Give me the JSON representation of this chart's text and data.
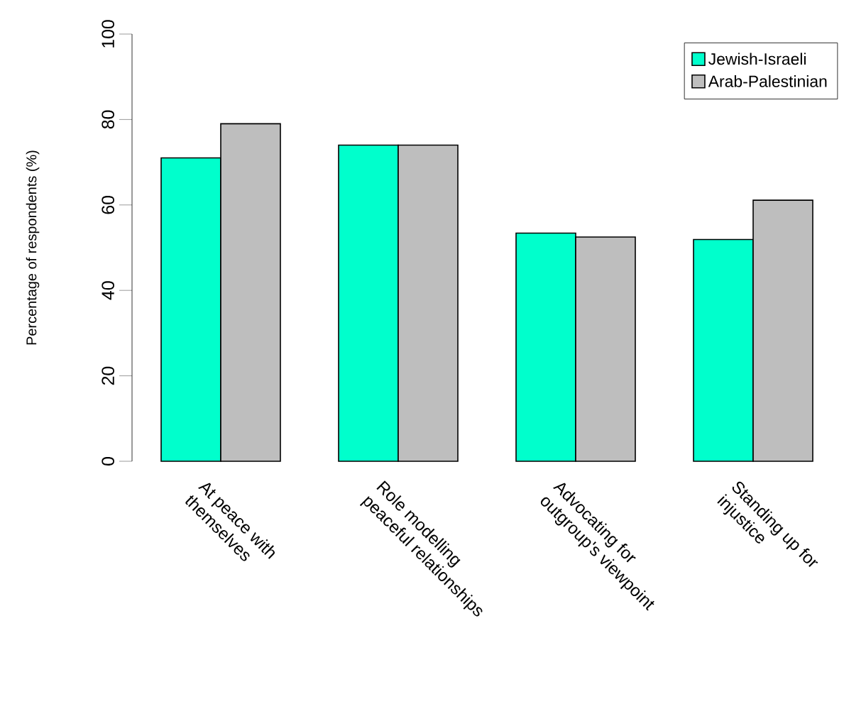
{
  "chart_data": {
    "type": "bar",
    "ylabel": "Percentage of respondents (%)",
    "categories": [
      "At peace with themselves",
      "Role modelling peaceful relationships",
      "Advocating for outgroup's viewpoint",
      "Standing up for injustice"
    ],
    "series": [
      {
        "name": "Jewish-Israeli",
        "color": "#00ffcc",
        "values": [
          71,
          74,
          53.4,
          51.9
        ]
      },
      {
        "name": "Arab-Palestinian",
        "color": "#bebebe",
        "values": [
          79,
          74,
          52.5,
          61.1
        ]
      }
    ],
    "ylim": [
      0,
      100
    ],
    "yticks": [
      0,
      20,
      40,
      60,
      80,
      100
    ],
    "legend": "top right"
  }
}
